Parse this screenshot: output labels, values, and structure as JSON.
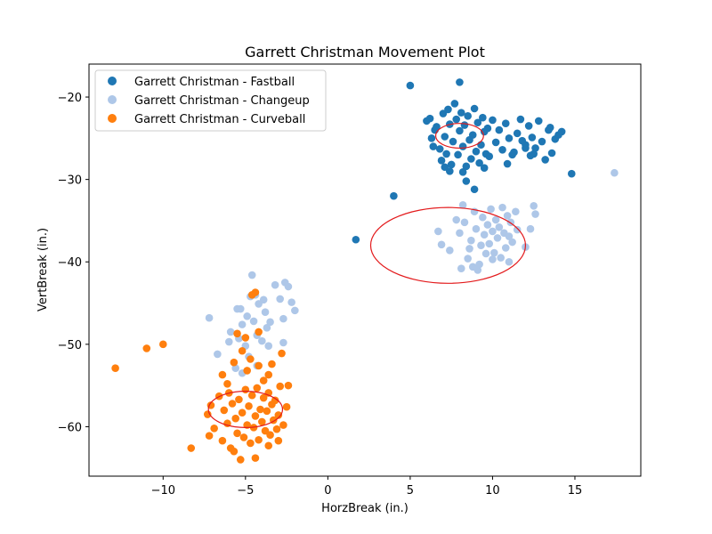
{
  "chart_data": {
    "type": "scatter",
    "title": "Garrett Christman Movement Plot",
    "xlabel": "HorzBreak (in.)",
    "ylabel": "VertBreak (in.)",
    "xlim": [
      -14.5,
      19.0
    ],
    "ylim": [
      -66.0,
      -16.0
    ],
    "y_inverted": true,
    "xticks": [
      -10,
      -5,
      0,
      5,
      10,
      15
    ],
    "yticks": [
      -20,
      -30,
      -40,
      -50,
      -60
    ],
    "grid": false,
    "legend_position": "top-left",
    "series": [
      {
        "name": "Garrett Christman - Fastball",
        "color": "#1f77b4",
        "points": [
          [
            5.0,
            -18.6
          ],
          [
            8.0,
            -18.2
          ],
          [
            1.7,
            -37.3
          ],
          [
            4.0,
            -32.0
          ],
          [
            14.8,
            -29.3
          ],
          [
            8.4,
            -30.2
          ],
          [
            8.9,
            -31.2
          ],
          [
            6.0,
            -22.9
          ],
          [
            6.2,
            -22.6
          ],
          [
            6.5,
            -24.0
          ],
          [
            6.3,
            -25.0
          ],
          [
            6.8,
            -26.3
          ],
          [
            6.6,
            -23.6
          ],
          [
            6.9,
            -27.7
          ],
          [
            7.0,
            -22.0
          ],
          [
            7.1,
            -24.8
          ],
          [
            7.2,
            -26.9
          ],
          [
            7.3,
            -21.5
          ],
          [
            7.4,
            -23.3
          ],
          [
            7.5,
            -28.2
          ],
          [
            7.6,
            -25.4
          ],
          [
            7.7,
            -20.8
          ],
          [
            7.8,
            -22.7
          ],
          [
            7.9,
            -27.0
          ],
          [
            8.0,
            -24.1
          ],
          [
            8.1,
            -21.9
          ],
          [
            8.2,
            -26.0
          ],
          [
            8.3,
            -23.4
          ],
          [
            8.4,
            -28.4
          ],
          [
            8.5,
            -22.3
          ],
          [
            8.6,
            -25.2
          ],
          [
            8.7,
            -27.5
          ],
          [
            8.8,
            -24.6
          ],
          [
            8.9,
            -21.4
          ],
          [
            9.0,
            -26.6
          ],
          [
            9.1,
            -23.1
          ],
          [
            9.2,
            -28.0
          ],
          [
            9.3,
            -25.8
          ],
          [
            9.4,
            -22.5
          ],
          [
            9.5,
            -24.2
          ],
          [
            9.6,
            -26.9
          ],
          [
            9.7,
            -23.8
          ],
          [
            9.8,
            -27.2
          ],
          [
            10.0,
            -22.8
          ],
          [
            10.2,
            -25.5
          ],
          [
            10.4,
            -24.0
          ],
          [
            10.6,
            -26.4
          ],
          [
            10.8,
            -23.2
          ],
          [
            11.0,
            -25.0
          ],
          [
            11.2,
            -27.0
          ],
          [
            11.5,
            -24.4
          ],
          [
            11.7,
            -22.7
          ],
          [
            12.0,
            -25.8
          ],
          [
            12.2,
            -23.5
          ],
          [
            12.4,
            -24.9
          ],
          [
            12.6,
            -26.2
          ],
          [
            12.8,
            -22.9
          ],
          [
            13.0,
            -25.4
          ],
          [
            13.2,
            -27.6
          ],
          [
            13.4,
            -24.0
          ],
          [
            13.6,
            -26.8
          ],
          [
            13.8,
            -25.1
          ],
          [
            14.0,
            -24.6
          ],
          [
            14.2,
            -24.2
          ],
          [
            12.3,
            -27.1
          ],
          [
            12.5,
            -26.9
          ],
          [
            11.8,
            -25.3
          ],
          [
            13.5,
            -23.7
          ],
          [
            7.4,
            -29.0
          ],
          [
            8.2,
            -29.1
          ],
          [
            9.5,
            -28.6
          ],
          [
            7.1,
            -28.5
          ],
          [
            6.4,
            -26.0
          ],
          [
            10.9,
            -28.1
          ],
          [
            11.3,
            -26.7
          ],
          [
            12.0,
            -26.2
          ]
        ]
      },
      {
        "name": "Garrett Christman - Changeup",
        "color": "#aec7e8",
        "points": [
          [
            17.4,
            -29.2
          ],
          [
            8.2,
            -33.1
          ],
          [
            6.7,
            -36.3
          ],
          [
            6.9,
            -37.9
          ],
          [
            7.4,
            -38.6
          ],
          [
            7.8,
            -34.9
          ],
          [
            8.0,
            -36.5
          ],
          [
            8.3,
            -35.2
          ],
          [
            8.5,
            -39.6
          ],
          [
            8.7,
            -37.4
          ],
          [
            8.9,
            -33.9
          ],
          [
            9.0,
            -36.0
          ],
          [
            9.2,
            -40.3
          ],
          [
            9.3,
            -38.0
          ],
          [
            9.4,
            -34.6
          ],
          [
            9.5,
            -36.7
          ],
          [
            9.6,
            -39.0
          ],
          [
            9.7,
            -35.5
          ],
          [
            9.8,
            -37.8
          ],
          [
            9.9,
            -33.6
          ],
          [
            10.0,
            -36.3
          ],
          [
            10.1,
            -38.9
          ],
          [
            10.2,
            -34.9
          ],
          [
            10.3,
            -37.1
          ],
          [
            10.4,
            -35.8
          ],
          [
            10.5,
            -39.5
          ],
          [
            10.6,
            -33.4
          ],
          [
            10.7,
            -36.5
          ],
          [
            10.8,
            -38.3
          ],
          [
            10.9,
            -34.4
          ],
          [
            11.0,
            -36.9
          ],
          [
            11.1,
            -35.2
          ],
          [
            11.2,
            -37.6
          ],
          [
            11.4,
            -33.9
          ],
          [
            11.5,
            -36.1
          ],
          [
            12.0,
            -38.2
          ],
          [
            12.3,
            -36.0
          ],
          [
            12.5,
            -33.2
          ],
          [
            12.6,
            -34.2
          ],
          [
            8.1,
            -40.8
          ],
          [
            9.1,
            -41.0
          ],
          [
            8.8,
            -40.6
          ],
          [
            11.0,
            -40.0
          ],
          [
            8.6,
            -38.4
          ],
          [
            10.0,
            -39.7
          ],
          [
            -7.2,
            -46.8
          ],
          [
            -6.7,
            -51.2
          ],
          [
            -5.9,
            -48.5
          ],
          [
            -5.5,
            -45.7
          ],
          [
            -5.4,
            -49.3
          ],
          [
            -5.2,
            -47.6
          ],
          [
            -5.0,
            -50.2
          ],
          [
            -4.9,
            -46.6
          ],
          [
            -4.7,
            -44.2
          ],
          [
            -4.6,
            -41.6
          ],
          [
            -4.5,
            -47.2
          ],
          [
            -4.3,
            -48.9
          ],
          [
            -4.2,
            -45.1
          ],
          [
            -4.0,
            -49.6
          ],
          [
            -3.9,
            -44.6
          ],
          [
            -3.8,
            -46.1
          ],
          [
            -3.7,
            -48.0
          ],
          [
            -3.2,
            -42.8
          ],
          [
            -2.9,
            -44.5
          ],
          [
            -2.7,
            -46.9
          ],
          [
            -2.6,
            -42.5
          ],
          [
            -2.4,
            -43.0
          ],
          [
            -2.2,
            -44.9
          ],
          [
            -2.0,
            -45.9
          ],
          [
            -2.7,
            -49.8
          ],
          [
            -3.6,
            -50.2
          ],
          [
            -4.8,
            -51.5
          ],
          [
            -5.6,
            -52.9
          ],
          [
            -4.3,
            -52.6
          ],
          [
            -5.2,
            -53.5
          ],
          [
            -4.4,
            -44.0
          ],
          [
            -5.3,
            -45.7
          ],
          [
            -6.0,
            -49.7
          ],
          [
            -3.5,
            -47.3
          ]
        ]
      },
      {
        "name": "Garrett Christman - Curveball",
        "color": "#ff7f0e",
        "points": [
          [
            -12.9,
            -52.9
          ],
          [
            -11.0,
            -50.5
          ],
          [
            -10.0,
            -50.0
          ],
          [
            -8.3,
            -62.6
          ],
          [
            -7.3,
            -58.5
          ],
          [
            -7.2,
            -61.1
          ],
          [
            -7.1,
            -57.4
          ],
          [
            -6.9,
            -60.2
          ],
          [
            -6.6,
            -56.3
          ],
          [
            -6.4,
            -61.7
          ],
          [
            -6.3,
            -58.0
          ],
          [
            -6.1,
            -59.6
          ],
          [
            -6.0,
            -55.9
          ],
          [
            -5.9,
            -62.6
          ],
          [
            -5.8,
            -57.2
          ],
          [
            -5.7,
            -63.0
          ],
          [
            -5.6,
            -59.0
          ],
          [
            -5.5,
            -60.8
          ],
          [
            -5.4,
            -56.7
          ],
          [
            -5.3,
            -64.0
          ],
          [
            -5.2,
            -58.3
          ],
          [
            -5.1,
            -61.3
          ],
          [
            -5.0,
            -55.5
          ],
          [
            -4.9,
            -59.8
          ],
          [
            -4.8,
            -57.5
          ],
          [
            -4.7,
            -62.0
          ],
          [
            -4.6,
            -56.2
          ],
          [
            -4.5,
            -60.1
          ],
          [
            -4.4,
            -58.7
          ],
          [
            -4.3,
            -55.3
          ],
          [
            -4.2,
            -61.6
          ],
          [
            -4.1,
            -57.9
          ],
          [
            -4.0,
            -59.4
          ],
          [
            -3.9,
            -56.5
          ],
          [
            -3.8,
            -60.5
          ],
          [
            -3.7,
            -58.1
          ],
          [
            -3.6,
            -55.9
          ],
          [
            -3.5,
            -61.0
          ],
          [
            -3.4,
            -57.3
          ],
          [
            -3.3,
            -59.2
          ],
          [
            -3.2,
            -56.8
          ],
          [
            -3.1,
            -60.3
          ],
          [
            -3.0,
            -58.6
          ],
          [
            -2.9,
            -55.1
          ],
          [
            -2.7,
            -59.8
          ],
          [
            -2.5,
            -57.6
          ],
          [
            -2.4,
            -55.0
          ],
          [
            -4.4,
            -63.8
          ],
          [
            -3.6,
            -62.3
          ],
          [
            -3.0,
            -61.7
          ],
          [
            -2.8,
            -51.1
          ],
          [
            -3.6,
            -53.7
          ],
          [
            -3.4,
            -52.4
          ],
          [
            -4.2,
            -52.6
          ],
          [
            -4.7,
            -51.8
          ],
          [
            -5.0,
            -49.2
          ],
          [
            -5.5,
            -48.7
          ],
          [
            -4.2,
            -48.5
          ],
          [
            -5.2,
            -50.8
          ],
          [
            -5.7,
            -52.2
          ],
          [
            -6.1,
            -54.8
          ],
          [
            -6.4,
            -53.7
          ],
          [
            -4.6,
            -44.0
          ],
          [
            -4.4,
            -43.7
          ],
          [
            -4.9,
            -53.2
          ],
          [
            -3.9,
            -54.4
          ]
        ]
      }
    ],
    "ellipses": [
      {
        "series": "Garrett Christman - Fastball",
        "cx": 8.0,
        "cy": -24.7,
        "rx": 1.45,
        "ry": 1.5
      },
      {
        "series": "Garrett Christman - Changeup",
        "cx": 7.3,
        "cy": -38.0,
        "rx": 4.7,
        "ry": 4.6
      },
      {
        "series": "Garrett Christman - Curveball",
        "cx": -5.0,
        "cy": -57.9,
        "rx": 2.25,
        "ry": 2.2
      }
    ],
    "ellipse_color": "#e31a1c"
  }
}
